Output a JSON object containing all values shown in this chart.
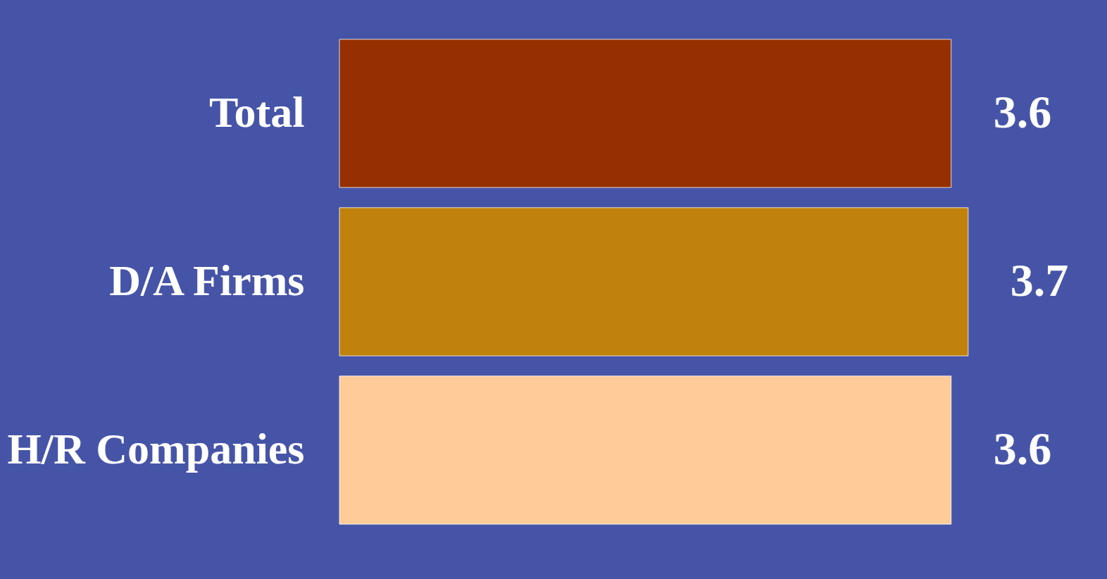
{
  "chart_data": {
    "type": "bar",
    "orientation": "horizontal",
    "categories": [
      "Total",
      "D/A Firms",
      "H/R Companies"
    ],
    "values": [
      3.6,
      3.7,
      3.6
    ],
    "colors": [
      "#963000",
      "#c0820c",
      "#ffcc99"
    ],
    "data_labels": true,
    "grid": false,
    "legend": false
  }
}
